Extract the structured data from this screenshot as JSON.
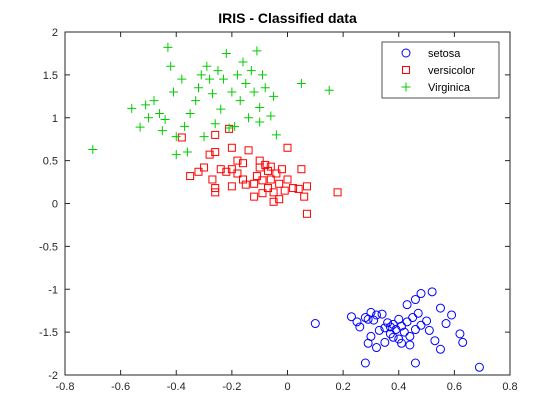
{
  "chart_data": {
    "type": "scatter",
    "title": "IRIS - Classified data",
    "xlabel": "",
    "ylabel": "",
    "xlim": [
      -0.8,
      0.8
    ],
    "ylim": [
      -2,
      2
    ],
    "xticks": [
      -0.8,
      -0.6,
      -0.4,
      -0.2,
      0,
      0.2,
      0.4,
      0.6,
      0.8
    ],
    "xtick_labels": [
      "-0.8",
      "-0.6",
      "-0.4",
      "-0.2",
      "0",
      "0.2",
      "0.4",
      "0.6",
      "0.8"
    ],
    "yticks": [
      -2,
      -1.5,
      -1,
      -0.5,
      0,
      0.5,
      1,
      1.5,
      2
    ],
    "ytick_labels": [
      "-2",
      "-1.5",
      "-1",
      "-0.5",
      "0",
      "0.5",
      "1",
      "1.5",
      "2"
    ],
    "grid": false,
    "legend_position": "top-right",
    "series": [
      {
        "name": "setosa",
        "marker": "circle",
        "color": "#0000ff",
        "points": [
          [
            0.1,
            -1.4
          ],
          [
            0.23,
            -1.32
          ],
          [
            0.25,
            -1.38
          ],
          [
            0.26,
            -1.44
          ],
          [
            0.28,
            -1.33
          ],
          [
            0.29,
            -1.35
          ],
          [
            0.3,
            -1.27
          ],
          [
            0.31,
            -1.36
          ],
          [
            0.3,
            -1.55
          ],
          [
            0.32,
            -1.3
          ],
          [
            0.33,
            -1.48
          ],
          [
            0.34,
            -1.29
          ],
          [
            0.35,
            -1.45
          ],
          [
            0.36,
            -1.39
          ],
          [
            0.37,
            -1.52
          ],
          [
            0.38,
            -1.41
          ],
          [
            0.39,
            -1.47
          ],
          [
            0.4,
            -1.35
          ],
          [
            0.4,
            -1.58
          ],
          [
            0.41,
            -1.43
          ],
          [
            0.42,
            -1.5
          ],
          [
            0.43,
            -1.38
          ],
          [
            0.44,
            -1.55
          ],
          [
            0.45,
            -1.33
          ],
          [
            0.46,
            -1.47
          ],
          [
            0.47,
            -1.28
          ],
          [
            0.48,
            -1.42
          ],
          [
            0.5,
            -1.37
          ],
          [
            0.51,
            -1.48
          ],
          [
            0.53,
            -1.6
          ],
          [
            0.43,
            -1.18
          ],
          [
            0.46,
            -1.12
          ],
          [
            0.48,
            -1.05
          ],
          [
            0.52,
            -1.03
          ],
          [
            0.55,
            -1.22
          ],
          [
            0.57,
            -1.4
          ],
          [
            0.59,
            -1.3
          ],
          [
            0.62,
            -1.52
          ],
          [
            0.63,
            -1.62
          ],
          [
            0.55,
            -1.7
          ],
          [
            0.46,
            -1.86
          ],
          [
            0.69,
            -1.91
          ],
          [
            0.28,
            -1.86
          ],
          [
            0.29,
            -1.63
          ],
          [
            0.32,
            -1.68
          ],
          [
            0.35,
            -1.62
          ],
          [
            0.38,
            -1.56
          ],
          [
            0.41,
            -1.63
          ],
          [
            0.44,
            -1.65
          ],
          [
            0.37,
            -1.44
          ]
        ]
      },
      {
        "name": "versicolor",
        "marker": "square",
        "color": "#ff0000",
        "points": [
          [
            -0.38,
            0.77
          ],
          [
            -0.35,
            0.32
          ],
          [
            -0.32,
            0.37
          ],
          [
            -0.3,
            0.42
          ],
          [
            -0.28,
            0.57
          ],
          [
            -0.27,
            0.28
          ],
          [
            -0.26,
            0.18
          ],
          [
            -0.24,
            0.4
          ],
          [
            -0.26,
            0.8
          ],
          [
            -0.26,
            0.6
          ],
          [
            -0.26,
            0.13
          ],
          [
            -0.22,
            0.37
          ],
          [
            -0.21,
            0.87
          ],
          [
            -0.2,
            0.2
          ],
          [
            -0.2,
            0.4
          ],
          [
            -0.18,
            0.35
          ],
          [
            -0.18,
            0.5
          ],
          [
            -0.16,
            0.47
          ],
          [
            -0.16,
            0.28
          ],
          [
            -0.14,
            0.62
          ],
          [
            -0.12,
            0.08
          ],
          [
            -0.11,
            0.32
          ],
          [
            -0.1,
            0.5
          ],
          [
            -0.1,
            0.42
          ],
          [
            -0.09,
            0.27
          ],
          [
            -0.09,
            0.12
          ],
          [
            -0.08,
            0.45
          ],
          [
            -0.07,
            0.38
          ],
          [
            -0.07,
            0.18
          ],
          [
            -0.06,
            0.28
          ],
          [
            -0.05,
            0.13
          ],
          [
            -0.05,
            0.02
          ],
          [
            -0.06,
            0.43
          ],
          [
            -0.04,
            0.35
          ],
          [
            -0.03,
            0.23
          ],
          [
            -0.02,
            0.4
          ],
          [
            -0.01,
            0.15
          ],
          [
            0.0,
            0.65
          ],
          [
            0.0,
            0.28
          ],
          [
            0.02,
            0.18
          ],
          [
            0.04,
            0.17
          ],
          [
            0.05,
            0.4
          ],
          [
            0.06,
            0.08
          ],
          [
            0.07,
            0.2
          ],
          [
            0.07,
            -0.12
          ],
          [
            0.18,
            0.13
          ],
          [
            -0.2,
            0.65
          ],
          [
            -0.15,
            0.22
          ],
          [
            -0.12,
            0.23
          ],
          [
            -0.03,
            0.05
          ]
        ]
      },
      {
        "name": "Virginica",
        "marker": "plus",
        "color": "#00cc00",
        "points": [
          [
            -0.7,
            0.63
          ],
          [
            -0.56,
            1.11
          ],
          [
            -0.53,
            0.89
          ],
          [
            -0.51,
            1.15
          ],
          [
            -0.5,
            1.0
          ],
          [
            -0.48,
            1.2
          ],
          [
            -0.46,
            1.05
          ],
          [
            -0.45,
            0.85
          ],
          [
            -0.44,
            0.98
          ],
          [
            -0.43,
            1.82
          ],
          [
            -0.42,
            1.6
          ],
          [
            -0.41,
            1.3
          ],
          [
            -0.4,
            0.78
          ],
          [
            -0.4,
            0.57
          ],
          [
            -0.38,
            1.45
          ],
          [
            -0.37,
            0.9
          ],
          [
            -0.36,
            0.6
          ],
          [
            -0.35,
            1.05
          ],
          [
            -0.33,
            1.2
          ],
          [
            -0.32,
            1.35
          ],
          [
            -0.31,
            1.5
          ],
          [
            -0.3,
            0.78
          ],
          [
            -0.29,
            1.6
          ],
          [
            -0.28,
            1.45
          ],
          [
            -0.27,
            1.28
          ],
          [
            -0.26,
            0.93
          ],
          [
            -0.25,
            1.55
          ],
          [
            -0.24,
            1.1
          ],
          [
            -0.23,
            1.45
          ],
          [
            -0.22,
            1.75
          ],
          [
            -0.21,
            0.88
          ],
          [
            -0.2,
            1.3
          ],
          [
            -0.19,
            0.9
          ],
          [
            -0.18,
            1.5
          ],
          [
            -0.17,
            1.2
          ],
          [
            -0.16,
            1.65
          ],
          [
            -0.15,
            1.4
          ],
          [
            -0.14,
            1.0
          ],
          [
            -0.13,
            1.55
          ],
          [
            -0.12,
            1.3
          ],
          [
            -0.11,
            1.78
          ],
          [
            -0.1,
            1.12
          ],
          [
            -0.1,
            0.95
          ],
          [
            -0.09,
            1.5
          ],
          [
            -0.08,
            1.35
          ],
          [
            -0.06,
            1.02
          ],
          [
            -0.05,
            1.25
          ],
          [
            -0.04,
            0.8
          ],
          [
            0.05,
            1.4
          ],
          [
            0.15,
            1.32
          ]
        ]
      }
    ]
  }
}
